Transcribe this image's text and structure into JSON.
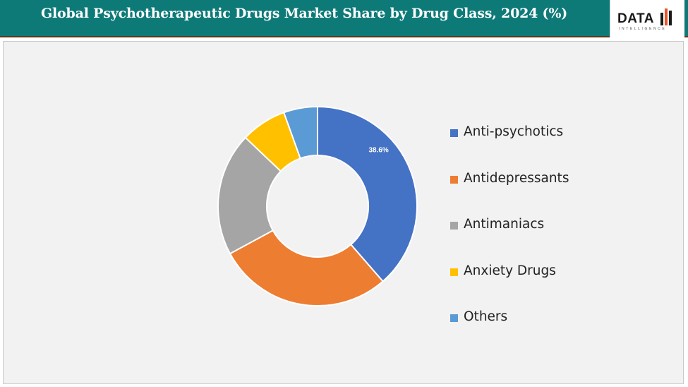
{
  "header": {
    "title": "Global Psychotherapeutic Drugs Market Share by Drug Class, 2024 (%)",
    "background": "#0e7a78"
  },
  "logo": {
    "wordmark": "DATA",
    "tagline": "INTELLIGENCE",
    "accent": "#e8562a"
  },
  "chart_data": {
    "type": "pie",
    "variant": "donut",
    "title": "Global Psychotherapeutic Drugs Market Share by Drug Class, 2024 (%)",
    "categories": [
      "Anti-psychotics",
      "Antidepressants",
      "Antimaniacs",
      "Anxiety Drugs",
      "Others"
    ],
    "values": [
      38.6,
      28.5,
      20.0,
      7.4,
      5.5
    ],
    "colors": [
      "#4472c4",
      "#ed7d31",
      "#a5a5a5",
      "#ffc000",
      "#5b9bd5"
    ],
    "data_labels": [
      "38.6%",
      "",
      "",
      "",
      ""
    ],
    "legend_position": "right"
  }
}
